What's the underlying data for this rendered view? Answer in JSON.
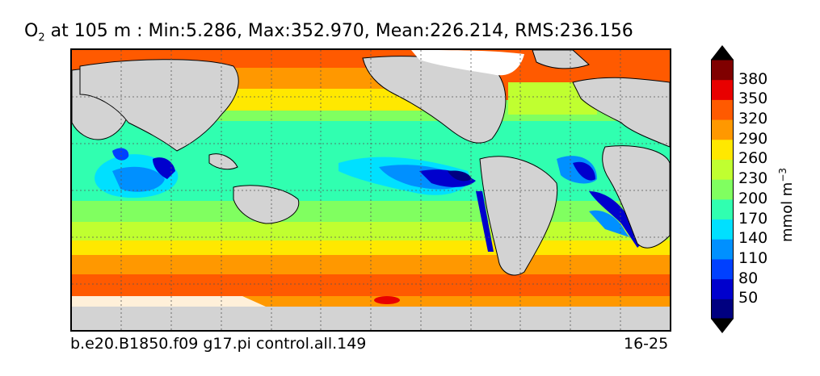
{
  "title": {
    "variable": "O",
    "subscript": "2",
    "text": " at 105 m : Min:5.286, Max:352.970, Mean:226.214, RMS:236.156"
  },
  "footer": {
    "run": "b.e20.B1850.f09 g17.pi control.all.149",
    "years": "16-25"
  },
  "colorbar": {
    "unit_main": "mmol m",
    "unit_exp": "−3",
    "ticks": [
      "380",
      "350",
      "320",
      "290",
      "260",
      "230",
      "200",
      "170",
      "140",
      "110",
      "80",
      "50"
    ],
    "colors": [
      "#000080",
      "#0000cd",
      "#0040ff",
      "#0090ff",
      "#00e0ff",
      "#30ffb0",
      "#80ff60",
      "#c0ff30",
      "#ffe800",
      "#ff9800",
      "#ff5a00",
      "#e80000",
      "#800000"
    ],
    "under_color": "#000000",
    "over_color": "#000000"
  },
  "colors": {
    "land": "#d3d3d3",
    "ice": "#ffffff"
  }
}
